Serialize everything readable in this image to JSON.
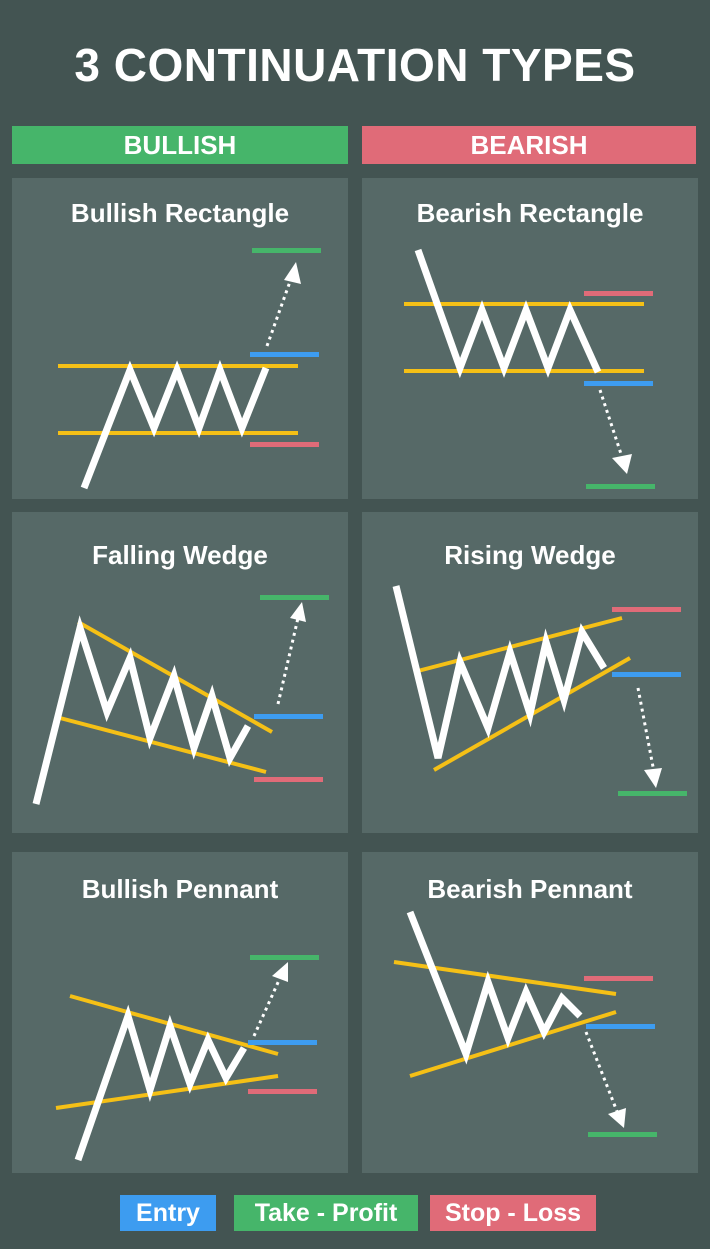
{
  "title": "3 CONTINUATION TYPES",
  "headers": {
    "bullish": "BULLISH",
    "bearish": "BEARISH"
  },
  "panels": {
    "bullish_rectangle": "Bullish Rectangle",
    "bearish_rectangle": "Bearish Rectangle",
    "falling_wedge": "Falling Wedge",
    "rising_wedge": "Rising Wedge",
    "bullish_pennant": "Bullish Pennant",
    "bearish_pennant": "Bearish Pennant"
  },
  "legend": {
    "entry": "Entry",
    "take_profit": "Take - Profit",
    "stop_loss": "Stop - Loss"
  },
  "colors": {
    "background": "#435452",
    "panel": "#566967",
    "bullish": "#46b56a",
    "bearish": "#e06b78",
    "entry": "#3d9cf0",
    "take_profit": "#46b56a",
    "stop_loss": "#e06b78",
    "trendline": "#f5c016",
    "price": "#ffffff"
  }
}
